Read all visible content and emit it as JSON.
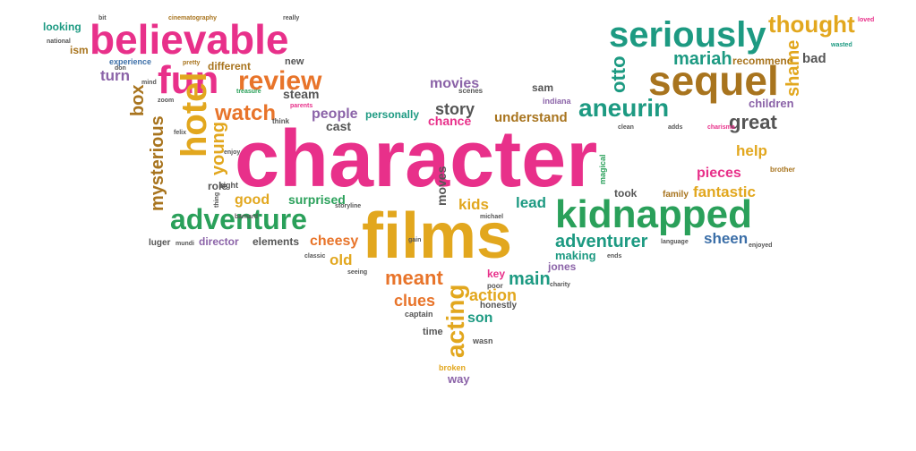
{
  "colors": {
    "pink": "#e8308a",
    "gold": "#e2a71e",
    "green": "#2aa05a",
    "teal": "#1d9a82",
    "brown": "#a8741e",
    "blue": "#3c6fa8",
    "purple": "#8b63a8",
    "gray": "#555555",
    "orange": "#e8742a"
  },
  "words": [
    {
      "text": "looking",
      "color": "teal"
    },
    {
      "text": "bit",
      "color": "gray"
    },
    {
      "text": "cinematography",
      "color": "brown"
    },
    {
      "text": "really",
      "color": "gray"
    },
    {
      "text": "loved",
      "color": "pink"
    },
    {
      "text": "believable",
      "color": "pink"
    },
    {
      "text": "seriously",
      "color": "teal"
    },
    {
      "text": "thought",
      "color": "gold"
    },
    {
      "text": "national",
      "color": "gray"
    },
    {
      "text": "ism",
      "color": "brown"
    },
    {
      "text": "experience",
      "color": "blue"
    },
    {
      "text": "pretty",
      "color": "brown"
    },
    {
      "text": "different",
      "color": "brown"
    },
    {
      "text": "new",
      "color": "gray"
    },
    {
      "text": "mariah",
      "color": "teal"
    },
    {
      "text": "recommend",
      "color": "brown"
    },
    {
      "text": "wasted",
      "color": "teal"
    },
    {
      "text": "bad",
      "color": "gray"
    },
    {
      "text": "turn",
      "color": "purple"
    },
    {
      "text": "don",
      "color": "gray"
    },
    {
      "text": "fun",
      "color": "pink"
    },
    {
      "text": "review",
      "color": "orange"
    },
    {
      "text": "sequel",
      "color": "brown"
    },
    {
      "text": "otto",
      "color": "teal"
    },
    {
      "text": "shame",
      "color": "gold"
    },
    {
      "text": "movies",
      "color": "purple"
    },
    {
      "text": "mind",
      "color": "gray"
    },
    {
      "text": "treasure",
      "color": "green"
    },
    {
      "text": "steam",
      "color": "gray"
    },
    {
      "text": "scenes",
      "color": "gray"
    },
    {
      "text": "box",
      "color": "brown"
    },
    {
      "text": "zoom",
      "color": "gray"
    },
    {
      "text": "watch",
      "color": "orange"
    },
    {
      "text": "cast",
      "color": "gray"
    },
    {
      "text": "people",
      "color": "purple"
    },
    {
      "text": "personally",
      "color": "teal"
    },
    {
      "text": "story",
      "color": "gray"
    },
    {
      "text": "sam",
      "color": "gray"
    },
    {
      "text": "indiana",
      "color": "purple"
    },
    {
      "text": "aneurin",
      "color": "teal"
    },
    {
      "text": "children",
      "color": "purple"
    },
    {
      "text": "hotel",
      "color": "gold"
    },
    {
      "text": "think",
      "color": "gray"
    },
    {
      "text": "parents",
      "color": "pink"
    },
    {
      "text": "chance",
      "color": "pink"
    },
    {
      "text": "understand",
      "color": "brown"
    },
    {
      "text": "great",
      "color": "gray"
    },
    {
      "text": "mysterious",
      "color": "brown"
    },
    {
      "text": "felix",
      "color": "gray"
    },
    {
      "text": "young",
      "color": "gold"
    },
    {
      "text": "clean",
      "color": "gray"
    },
    {
      "text": "adds",
      "color": "gray"
    },
    {
      "text": "charisma",
      "color": "pink"
    },
    {
      "text": "character",
      "color": "pink"
    },
    {
      "text": "help",
      "color": "gold"
    },
    {
      "text": "enjoy",
      "color": "gray"
    },
    {
      "text": "brother",
      "color": "brown"
    },
    {
      "text": "role",
      "color": "gray"
    },
    {
      "text": "pieces",
      "color": "pink"
    },
    {
      "text": "right",
      "color": "gray"
    },
    {
      "text": "moves",
      "color": "gray"
    },
    {
      "text": "magical",
      "color": "green"
    },
    {
      "text": "thing",
      "color": "gray"
    },
    {
      "text": "good",
      "color": "gold"
    },
    {
      "text": "surprised",
      "color": "green"
    },
    {
      "text": "took",
      "color": "gray"
    },
    {
      "text": "family",
      "color": "brown"
    },
    {
      "text": "fantastic",
      "color": "gold"
    },
    {
      "text": "kids",
      "color": "gold"
    },
    {
      "text": "lead",
      "color": "teal"
    },
    {
      "text": "films",
      "color": "gold"
    },
    {
      "text": "kidnapped",
      "color": "green"
    },
    {
      "text": "adventure",
      "color": "green"
    },
    {
      "text": "barnard",
      "color": "gray"
    },
    {
      "text": "storyline",
      "color": "gray"
    },
    {
      "text": "michael",
      "color": "gray"
    },
    {
      "text": "cheesy",
      "color": "orange"
    },
    {
      "text": "luger",
      "color": "gray"
    },
    {
      "text": "mundi",
      "color": "gray"
    },
    {
      "text": "director",
      "color": "purple"
    },
    {
      "text": "elements",
      "color": "gray"
    },
    {
      "text": "gain",
      "color": "gray"
    },
    {
      "text": "adventurer",
      "color": "teal"
    },
    {
      "text": "sheen",
      "color": "blue"
    },
    {
      "text": "language",
      "color": "gray"
    },
    {
      "text": "enjoyed",
      "color": "gray"
    },
    {
      "text": "classic",
      "color": "gray"
    },
    {
      "text": "old",
      "color": "gold"
    },
    {
      "text": "ends",
      "color": "gray"
    },
    {
      "text": "making",
      "color": "teal"
    },
    {
      "text": "jones",
      "color": "purple"
    },
    {
      "text": "seeing",
      "color": "gray"
    },
    {
      "text": "meant",
      "color": "orange"
    },
    {
      "text": "key",
      "color": "pink"
    },
    {
      "text": "main",
      "color": "teal"
    },
    {
      "text": "charity",
      "color": "gray"
    },
    {
      "text": "clues",
      "color": "orange"
    },
    {
      "text": "acting",
      "color": "gold"
    },
    {
      "text": "action",
      "color": "gold"
    },
    {
      "text": "captain",
      "color": "gray"
    },
    {
      "text": "honestly",
      "color": "gray"
    },
    {
      "text": "son",
      "color": "teal"
    },
    {
      "text": "time",
      "color": "gray"
    },
    {
      "text": "wasn",
      "color": "gray"
    },
    {
      "text": "poor",
      "color": "gray"
    },
    {
      "text": "broken",
      "color": "gold"
    },
    {
      "text": "way",
      "color": "purple"
    }
  ]
}
